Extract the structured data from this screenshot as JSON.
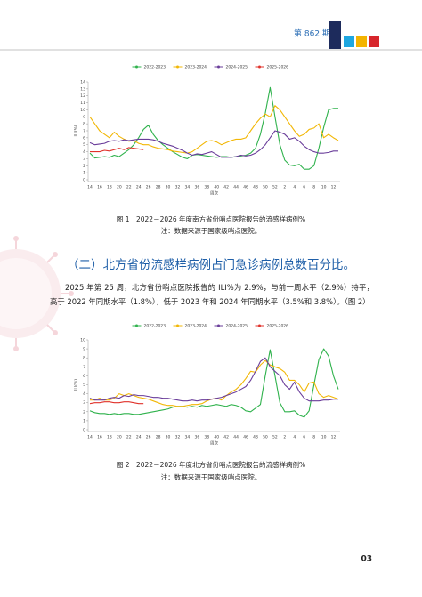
{
  "header": {
    "issue": "第 862 期"
  },
  "chart_data": [
    {
      "type": "line",
      "x_label": "周次",
      "y_label": "ILI(%)",
      "categories": [
        "14",
        null,
        "16",
        null,
        "18",
        null,
        "20",
        null,
        "22",
        null,
        "24",
        null,
        "26",
        null,
        "28",
        null,
        "30",
        null,
        "32",
        null,
        "34",
        null,
        "36",
        null,
        "38",
        null,
        "40",
        null,
        "42",
        null,
        "44",
        null,
        "46",
        null,
        "48",
        null,
        "50",
        null,
        "52",
        null,
        "2",
        null,
        "4",
        null,
        "6",
        null,
        "8",
        null,
        "10",
        null,
        "12",
        null
      ],
      "series": [
        {
          "name": "2022-2023",
          "color": "#2fb24c",
          "values": [
            3.8,
            3.1,
            3.2,
            3.3,
            3.2,
            3.5,
            3.3,
            3.8,
            4.3,
            5.0,
            6.0,
            7.2,
            7.8,
            6.5,
            5.6,
            5.0,
            4.5,
            4.0,
            3.6,
            3.2,
            3.0,
            3.5,
            3.6,
            3.5,
            3.4,
            3.3,
            3.2,
            3.3,
            3.3,
            3.2,
            3.3,
            3.4,
            3.5,
            3.8,
            4.5,
            6.5,
            9.5,
            13.2,
            9.0,
            5.0,
            2.8,
            2.1,
            2.0,
            2.2,
            1.5,
            1.5,
            2.0,
            4.5,
            7.5,
            10.0,
            10.2,
            10.2
          ]
        },
        {
          "name": "2023-2024",
          "color": "#f2b705",
          "values": [
            9.0,
            8.0,
            7.0,
            6.5,
            6.0,
            6.8,
            6.2,
            5.8,
            5.5,
            5.6,
            5.2,
            5.0,
            5.0,
            4.7,
            4.5,
            4.4,
            4.3,
            4.1,
            4.0,
            3.9,
            3.8,
            4.0,
            4.5,
            5.0,
            5.5,
            5.6,
            5.4,
            5.0,
            5.3,
            5.6,
            5.8,
            5.8,
            6.0,
            7.0,
            8.0,
            8.8,
            9.4,
            9.0,
            10.6,
            10.0,
            9.0,
            8.0,
            7.0,
            6.2,
            6.5,
            7.2,
            7.4,
            8.0,
            6.0,
            6.5,
            6.0,
            5.6
          ]
        },
        {
          "name": "2024-2025",
          "color": "#6a3d9a",
          "values": [
            5.3,
            5.0,
            5.1,
            5.2,
            5.5,
            5.6,
            5.5,
            5.7,
            5.6,
            5.7,
            5.8,
            5.8,
            5.8,
            5.7,
            5.5,
            5.2,
            5.0,
            4.8,
            4.5,
            4.2,
            3.8,
            3.5,
            3.7,
            3.6,
            3.8,
            4.0,
            3.6,
            3.2,
            3.2,
            3.2,
            3.3,
            3.5,
            3.4,
            3.5,
            3.8,
            4.3,
            5.0,
            6.0,
            7.0,
            6.8,
            6.5,
            5.8,
            6.0,
            5.5,
            4.8,
            4.3,
            4.0,
            3.8,
            3.8,
            3.9,
            4.1,
            4.1
          ]
        },
        {
          "name": "2025-2026",
          "color": "#e0322b",
          "values": [
            4.0,
            4.0,
            4.0,
            4.2,
            4.1,
            4.3,
            4.5,
            4.3,
            4.6,
            4.5,
            4.4,
            4.3,
            null,
            null,
            null,
            null,
            null,
            null,
            null,
            null,
            null,
            null,
            null,
            null,
            null,
            null,
            null,
            null,
            null,
            null,
            null,
            null,
            null,
            null,
            null,
            null,
            null,
            null,
            null,
            null,
            null,
            null,
            null,
            null,
            null,
            null,
            null,
            null,
            null,
            null,
            null,
            null
          ]
        }
      ],
      "ylim": [
        0,
        14
      ],
      "yticks": [
        0,
        1,
        2,
        3,
        4,
        5,
        6,
        7,
        8,
        9,
        10,
        11,
        12,
        13,
        14
      ],
      "legend": "top"
    },
    {
      "type": "line",
      "x_label": "周次",
      "y_label": "ILI(%)",
      "categories": [
        "14",
        null,
        "16",
        null,
        "18",
        null,
        "20",
        null,
        "22",
        null,
        "24",
        null,
        "26",
        null,
        "28",
        null,
        "30",
        null,
        "32",
        null,
        "34",
        null,
        "36",
        null,
        "38",
        null,
        "40",
        null,
        "42",
        null,
        "44",
        null,
        "46",
        null,
        "48",
        null,
        "50",
        null,
        "52",
        null,
        "2",
        null,
        "4",
        null,
        "6",
        null,
        "8",
        null,
        "10",
        null,
        "12",
        null
      ],
      "series": [
        {
          "name": "2022-2023",
          "color": "#2fb24c",
          "values": [
            2.1,
            1.9,
            1.8,
            1.8,
            1.7,
            1.8,
            1.7,
            1.8,
            1.8,
            1.7,
            1.7,
            1.8,
            1.9,
            2.0,
            2.1,
            2.2,
            2.3,
            2.5,
            2.6,
            2.6,
            2.5,
            2.6,
            2.5,
            2.7,
            2.6,
            2.7,
            2.8,
            2.7,
            2.6,
            2.8,
            2.7,
            2.5,
            2.1,
            2.0,
            2.4,
            2.8,
            6.0,
            8.9,
            6.0,
            3.0,
            2.0,
            2.0,
            2.1,
            1.6,
            1.4,
            2.1,
            5.0,
            7.8,
            9.0,
            8.2,
            6.0,
            4.5
          ]
        },
        {
          "name": "2023-2024",
          "color": "#f2b705",
          "values": [
            3.3,
            3.3,
            3.5,
            3.3,
            3.3,
            3.5,
            4.0,
            3.8,
            4.0,
            3.8,
            3.6,
            3.5,
            3.4,
            3.2,
            3.0,
            2.8,
            2.7,
            2.7,
            2.6,
            2.6,
            2.7,
            2.8,
            2.8,
            2.9,
            3.2,
            3.4,
            3.5,
            3.3,
            3.8,
            4.2,
            4.5,
            5.0,
            5.7,
            6.5,
            6.4,
            7.2,
            7.7,
            7.2,
            7.0,
            6.8,
            6.4,
            5.5,
            5.5,
            5.0,
            4.2,
            5.2,
            5.3,
            4.0,
            3.6,
            3.8,
            3.6,
            3.4
          ]
        },
        {
          "name": "2024-2025",
          "color": "#6a3d9a",
          "values": [
            3.5,
            3.3,
            3.3,
            3.3,
            3.5,
            3.6,
            3.5,
            3.8,
            3.7,
            3.9,
            3.8,
            3.8,
            3.7,
            3.6,
            3.6,
            3.5,
            3.5,
            3.4,
            3.3,
            3.2,
            3.2,
            3.3,
            3.2,
            3.3,
            3.3,
            3.4,
            3.5,
            3.6,
            3.8,
            4.0,
            4.2,
            4.5,
            4.8,
            5.5,
            6.5,
            7.6,
            8.0,
            7.0,
            6.5,
            6.0,
            5.0,
            4.5,
            5.3,
            4.2,
            3.5,
            3.2,
            3.2,
            3.2,
            3.3,
            3.3,
            3.4,
            3.4
          ]
        },
        {
          "name": "2025-2026",
          "color": "#e0322b",
          "values": [
            2.9,
            3.0,
            3.0,
            3.1,
            3.1,
            3.0,
            3.0,
            3.1,
            3.1,
            3.0,
            2.9,
            2.9,
            null,
            null,
            null,
            null,
            null,
            null,
            null,
            null,
            null,
            null,
            null,
            null,
            null,
            null,
            null,
            null,
            null,
            null,
            null,
            null,
            null,
            null,
            null,
            null,
            null,
            null,
            null,
            null,
            null,
            null,
            null,
            null,
            null,
            null,
            null,
            null,
            null,
            null,
            null,
            null
          ]
        }
      ],
      "ylim": [
        0,
        10
      ],
      "yticks": [
        0,
        1,
        2,
        3,
        4,
        5,
        6,
        7,
        8,
        9,
        10
      ],
      "legend": "top"
    }
  ],
  "figures": [
    {
      "caption": "图 1　2022－2026 年度南方省份哨点医院报告的流感样病例%",
      "note": "注：数据来源于国家级哨点医院。"
    },
    {
      "caption": "图 2　2022－2026 年度北方省份哨点医院报告的流感样病例%",
      "note": "注：数据来源于国家级哨点医院。"
    }
  ],
  "section": {
    "title": "（二）北方省份流感样病例占门急诊病例总数百分比。",
    "paragraph": "2025 年第 25 周，北方省份哨点医院报告的 ILI%为 2.9%，与前一周水平（2.9%）持平，高于 2022 年同期水平（1.8%），低于 2023 年和 2024 年同期水平（3.5%和 3.8%）。（图 2）"
  },
  "page_number": "03"
}
